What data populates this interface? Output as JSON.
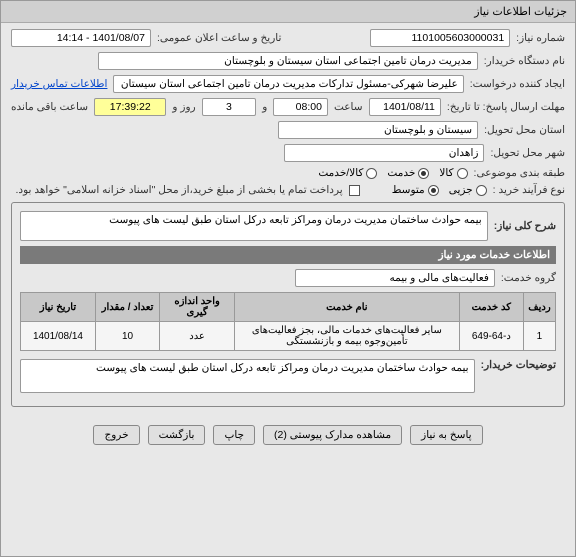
{
  "window": {
    "title": "جزئیات اطلاعات نیاز"
  },
  "fields": {
    "need_no_label": "شماره نیاز:",
    "need_no": "1101005603000031",
    "announce_time_label": "تاریخ و ساعت اعلان عمومی:",
    "announce_time": "1401/08/07 - 14:14",
    "buyer_org_label": "نام دستگاه خریدار:",
    "buyer_org": "مدیریت درمان تامین اجتماعی استان سیستان و بلوچستان",
    "creator_label": "ایجاد کننده درخواست:",
    "creator": "علیرضا شهرکی-مسئول تدارکات مدیریت درمان تامین اجتماعی استان سیستان",
    "contact_link": "اطلاعات تماس خریدار",
    "deadline_label": "مهلت ارسال پاسخ: تا تاریخ:",
    "deadline_date": "1401/08/11",
    "time_label": "ساعت",
    "deadline_time": "08:00",
    "and_label": "و",
    "days_remaining": "3",
    "days_label": "روز و",
    "time_remaining": "17:39:22",
    "time_remaining_bg": "#ffff99",
    "remaining_label": "ساعت باقی مانده",
    "province_label": "استان محل تحویل:",
    "province": "سیستان و بلوچستان",
    "city_label": "شهر محل تحویل:",
    "city": "زاهدان",
    "category_label": "طبقه بندی موضوعی:",
    "cat_goods": "کالا",
    "cat_service": "خدمت",
    "cat_both": "کالا/خدمت",
    "process_label": "نوع فرآیند خرید :",
    "proc_minor": "جزیی",
    "proc_medium": "متوسط",
    "payment_note": "پرداخت تمام یا بخشی از مبلغ خرید،از محل \"اسناد خزانه اسلامی\" خواهد بود."
  },
  "description": {
    "label": "شرح کلی نیاز:",
    "text": "بیمه حوادث ساختمان مدیریت درمان ومراکز تابعه درکل استان طبق لیست های پیوست"
  },
  "services_section": {
    "header": "اطلاعات خدمات مورد نیاز",
    "group_label": "گروه خدمت:",
    "group_value": "فعالیت‌های مالی و بیمه"
  },
  "table": {
    "columns": [
      "ردیف",
      "کد خدمت",
      "نام خدمت",
      "واحد اندازه گیری",
      "تعداد / مقدار",
      "تاریخ نیاز"
    ],
    "rows": [
      [
        "1",
        "د-64-649",
        "سایر فعالیت‌های خدمات مالی، بجز فعالیت‌های تأمین‌وجوه بیمه و بازنشستگی",
        "عدد",
        "10",
        "1401/08/14"
      ]
    ],
    "col_widths": [
      "6%",
      "12%",
      "42%",
      "14%",
      "12%",
      "14%"
    ]
  },
  "buyer_notes": {
    "label": "توضیحات خریدار:",
    "text": "بیمه حوادث ساختمان مدیریت درمان ومراکز تابعه درکل استان طبق لیست های پیوست"
  },
  "buttons": {
    "respond": "پاسخ به نیاز",
    "attachments": "مشاهده مدارک پیوستی (2)",
    "print": "چاپ",
    "back": "بازگشت",
    "exit": "خروج"
  }
}
